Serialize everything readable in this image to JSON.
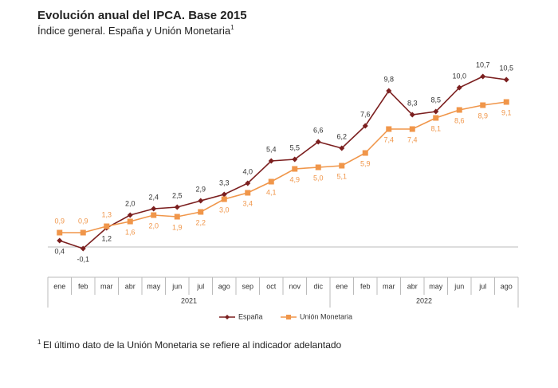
{
  "chart_data": {
    "type": "line",
    "title": "Evolución anual del IPCA. Base 2015",
    "subtitle": "Índice general. España y Unión Monetaria",
    "subtitle_note": "1",
    "categories": [
      "ene",
      "feb",
      "mar",
      "abr",
      "may",
      "jun",
      "jul",
      "ago",
      "sep",
      "oct",
      "nov",
      "dic",
      "ene",
      "feb",
      "mar",
      "abr",
      "may",
      "jun",
      "jul",
      "ago"
    ],
    "x_groups": [
      {
        "label": "2021",
        "count": 12
      },
      {
        "label": "2022",
        "count": 8
      }
    ],
    "series": [
      {
        "name": "España",
        "color": "#7b1f1f",
        "values": [
          0.4,
          -0.1,
          1.2,
          2.0,
          2.4,
          2.5,
          2.9,
          3.3,
          4.0,
          5.4,
          5.5,
          6.6,
          6.2,
          7.6,
          9.8,
          8.3,
          8.5,
          10.0,
          10.7,
          10.5
        ],
        "value_labels": [
          "0,4",
          "-0,1",
          "1,2",
          "2,0",
          "2,4",
          "2,5",
          "2,9",
          "3,3",
          "4,0",
          "5,4",
          "5,5",
          "6,6",
          "6,2",
          "7,6",
          "9,8",
          "8,3",
          "8,5",
          "10,0",
          "10,7",
          "10,5"
        ]
      },
      {
        "name": "Unión Monetaria",
        "color": "#f0964a",
        "values": [
          0.9,
          0.9,
          1.3,
          1.6,
          2.0,
          1.9,
          2.2,
          3.0,
          3.4,
          4.1,
          4.9,
          5.0,
          5.1,
          5.9,
          7.4,
          7.4,
          8.1,
          8.6,
          8.9,
          9.1
        ],
        "value_labels": [
          "0,9",
          "0,9",
          "1,3",
          "1,6",
          "2,0",
          "1,9",
          "2,2",
          "3,0",
          "3,4",
          "4,1",
          "4,9",
          "5,0",
          "5,1",
          "5,9",
          "7,4",
          "7,4",
          "8,1",
          "8,6",
          "8,9",
          "9,1"
        ]
      }
    ],
    "footnote_marker": "1",
    "footnote": "El último dato de la Unión Monetaria se refiere al indicador adelantado"
  }
}
